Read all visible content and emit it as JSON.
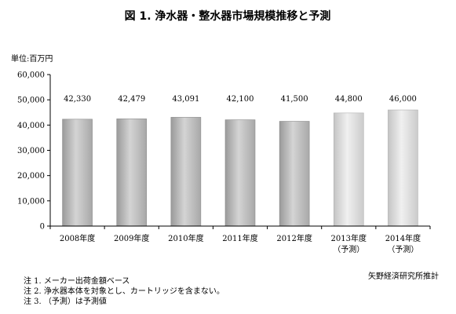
{
  "chart_data": {
    "type": "bar",
    "title": "図 1.  浄水器・整水器市場規模推移と予測",
    "unit_label": "単位:百万円",
    "categories": [
      {
        "label": "2008年度",
        "sublabel": ""
      },
      {
        "label": "2009年度",
        "sublabel": ""
      },
      {
        "label": "2010年度",
        "sublabel": ""
      },
      {
        "label": "2011年度",
        "sublabel": ""
      },
      {
        "label": "2012年度",
        "sublabel": ""
      },
      {
        "label": "2013年度",
        "sublabel": "（予測）"
      },
      {
        "label": "2014年度",
        "sublabel": "（予測）"
      }
    ],
    "values": [
      42330,
      42479,
      43091,
      42100,
      41500,
      44800,
      46000
    ],
    "value_labels": [
      "42,330",
      "42,479",
      "43,091",
      "42,100",
      "41,500",
      "44,800",
      "46,000"
    ],
    "forecast": [
      false,
      false,
      false,
      false,
      false,
      true,
      true
    ],
    "ylim": [
      0,
      60000
    ],
    "yticks": [
      0,
      10000,
      20000,
      30000,
      40000,
      50000,
      60000
    ],
    "ytick_labels": [
      "0",
      "10,000",
      "20,000",
      "30,000",
      "40,000",
      "50,000",
      "60,000"
    ],
    "grid": false,
    "colors": {
      "actual": "#bdbdbd",
      "forecast": "#e2e2e2",
      "actual_edge": "#8c8c8c",
      "forecast_edge": "#b0b0b0",
      "axis": "#000000"
    }
  },
  "notes": [
    "注 1.  メーカー出荷金額ベース",
    "注 2.  浄水器本体を対象とし、カートリッジを含まない。",
    "注 3.  （予測）は予測値"
  ],
  "source": "矢野経済研究所推計"
}
